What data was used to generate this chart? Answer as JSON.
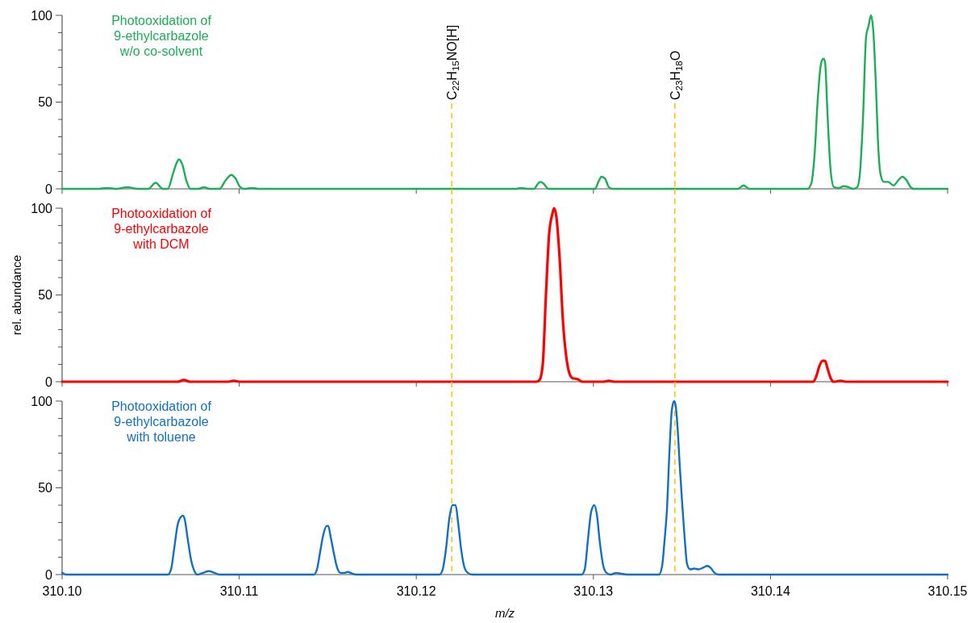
{
  "chart_data": [
    {
      "type": "line",
      "xlim": [
        310.1,
        310.15
      ],
      "ylim": [
        0,
        100
      ],
      "xticks": [
        {
          "value": 310.1,
          "label": null
        },
        {
          "value": 310.11,
          "label": null
        },
        {
          "value": 310.12,
          "label": null
        },
        {
          "value": 310.13,
          "label": null
        },
        {
          "value": 310.14,
          "label": null
        },
        {
          "value": 310.15,
          "label": null
        }
      ],
      "yticks": [
        0,
        {
          "value": 10,
          "label": null
        },
        {
          "value": 20,
          "label": null
        },
        {
          "value": 30,
          "label": null
        },
        {
          "value": 40,
          "label": null
        },
        50,
        {
          "value": 60,
          "label": null
        },
        {
          "value": 70,
          "label": null
        },
        {
          "value": 80,
          "label": null
        },
        {
          "value": 90,
          "label": null
        },
        100
      ],
      "tick_labels": "y",
      "ref_lines": [
        {
          "axis": "x",
          "value": 310.122,
          "label": "C$_{22}$H$_{15}$NO[H]",
          "color": "#ffc000",
          "line_style": "dashed"
        },
        {
          "axis": "x",
          "value": 310.1346,
          "label": "C$_{23}$H$_{18}$O",
          "color": "#ffc000",
          "line_style": "dashed"
        }
      ],
      "series": [
        {
          "name": "Photooxidation of\n9-ethylcarbazole\nw/o co-solvent",
          "color": "#1aaf54",
          "x": [
            310.1,
            310.10196,
            310.10255,
            310.1031,
            310.10369,
            310.10424,
            310.10487,
            310.10528,
            310.10569,
            310.10597,
            310.10624,
            310.10647,
            310.1066,
            310.10679,
            310.10701,
            310.10724,
            310.1077,
            310.10801,
            310.10833,
            310.10888,
            310.10924,
            310.10956,
            310.10979,
            310.11006,
            310.11029,
            310.1107,
            310.11116,
            310.12564,
            310.12591,
            310.12632,
            310.12664,
            310.12687,
            310.127,
            310.12719,
            310.12746,
            310.1301,
            310.13028,
            310.13046,
            310.13065,
            310.13087,
            310.1311,
            310.13816,
            310.13848,
            310.1388,
            310.14208,
            310.1423,
            310.14249,
            310.14267,
            310.14285,
            310.14299,
            310.14308,
            310.14321,
            310.1434,
            310.14358,
            310.14385,
            310.14413,
            310.1444,
            310.14467,
            310.1449,
            310.14504,
            310.14522,
            310.1454,
            310.14554,
            310.14567,
            310.14581,
            310.14595,
            310.14608,
            310.14622,
            310.1464,
            310.14663,
            310.14695,
            310.14722,
            310.14745,
            310.14768,
            310.14791,
            310.14809,
            310.15
          ],
          "values": [
            0,
            0,
            0.5,
            0,
            1,
            0,
            0,
            3.5,
            0,
            0,
            8,
            15,
            17,
            14,
            5,
            0,
            0,
            1,
            0,
            0,
            5,
            8,
            6,
            1,
            0,
            0.5,
            0,
            0,
            0.5,
            0,
            0,
            3,
            4,
            3,
            0,
            0,
            4,
            7,
            6,
            1,
            0,
            0,
            2,
            0,
            0,
            3,
            20,
            52,
            72,
            75,
            73,
            45,
            10,
            1,
            0.5,
            1.5,
            1,
            0,
            1,
            8,
            40,
            88,
            94,
            100,
            90,
            60,
            25,
            8,
            4,
            4,
            2,
            5,
            7,
            5,
            1,
            0,
            0
          ]
        }
      ]
    },
    {
      "type": "line",
      "xlim": [
        310.1,
        310.15
      ],
      "ylim": [
        0,
        100
      ],
      "ylabel": "rel. abundance",
      "xticks": [
        {
          "value": 310.1,
          "label": null
        },
        {
          "value": 310.11,
          "label": null
        },
        {
          "value": 310.12,
          "label": null
        },
        {
          "value": 310.13,
          "label": null
        },
        {
          "value": 310.14,
          "label": null
        },
        {
          "value": 310.15,
          "label": null
        }
      ],
      "yticks": [
        0,
        {
          "value": 10,
          "label": null
        },
        {
          "value": 20,
          "label": null
        },
        {
          "value": 30,
          "label": null
        },
        {
          "value": 40,
          "label": null
        },
        50,
        {
          "value": 60,
          "label": null
        },
        {
          "value": 70,
          "label": null
        },
        {
          "value": 80,
          "label": null
        },
        {
          "value": 90,
          "label": null
        },
        100
      ],
      "tick_labels": "y",
      "ref_lines": [
        {
          "axis": "x",
          "value": 310.122,
          "color": "#ffc000",
          "line_style": "dashed"
        },
        {
          "axis": "x",
          "value": 310.1346,
          "color": "#ffc000",
          "line_style": "dashed"
        }
      ],
      "series": [
        {
          "name": "Photooxidation of\n9-ethylcarbazole\nwith DCM",
          "color": "#ff0000",
          "x": [
            310.1,
            310.10651,
            310.10688,
            310.10724,
            310.10934,
            310.1097,
            310.11006,
            310.12678,
            310.12696,
            310.12714,
            310.12732,
            310.1275,
            310.12769,
            310.12778,
            310.12791,
            310.1281,
            310.12828,
            310.12846,
            310.12864,
            310.12883,
            310.1291,
            310.12937,
            310.13056,
            310.13087,
            310.13119,
            310.1424,
            310.14258,
            310.14276,
            310.14294,
            310.14308,
            310.14321,
            310.1434,
            310.14358,
            310.14394,
            310.14431,
            310.15
          ],
          "values": [
            0,
            0,
            1,
            0,
            0,
            0.5,
            0,
            0,
            1,
            10,
            50,
            85,
            97,
            100,
            95,
            70,
            35,
            15,
            5,
            2,
            1.5,
            0,
            0,
            0.5,
            0,
            0,
            3,
            9,
            12,
            12,
            8,
            2,
            0,
            0.5,
            0,
            0
          ]
        }
      ]
    },
    {
      "type": "line",
      "xlim": [
        310.1,
        310.15
      ],
      "ylim": [
        0,
        100
      ],
      "xlabel": "m/z",
      "xticks": [
        {
          "value": 310.1,
          "label": "310.10"
        },
        {
          "value": 310.11,
          "label": "310.11"
        },
        {
          "value": 310.12,
          "label": "310.12"
        },
        {
          "value": 310.13,
          "label": "310.13"
        },
        {
          "value": 310.14,
          "label": "310.14"
        },
        {
          "value": 310.15,
          "label": "310.15"
        }
      ],
      "yticks": [
        0,
        {
          "value": 10,
          "label": null
        },
        {
          "value": 20,
          "label": null
        },
        {
          "value": 30,
          "label": null
        },
        {
          "value": 40,
          "label": null
        },
        50,
        {
          "value": 60,
          "label": null
        },
        {
          "value": 70,
          "label": null
        },
        {
          "value": 80,
          "label": null
        },
        {
          "value": 90,
          "label": null
        },
        100
      ],
      "ref_lines": [
        {
          "axis": "x",
          "value": 310.122,
          "color": "#ffc000",
          "line_style": "dashed"
        },
        {
          "axis": "x",
          "value": 310.1346,
          "color": "#ffc000",
          "line_style": "dashed"
        }
      ],
      "series": [
        {
          "name": "Photooxidation of\n9-ethylcarbazole\nwith toluene",
          "color": "#1170c4",
          "x": [
            310.1,
            310.10023,
            310.10597,
            310.10615,
            310.10633,
            310.10651,
            310.10669,
            310.10683,
            310.10692,
            310.1071,
            310.10729,
            310.10747,
            310.10765,
            310.10797,
            310.10829,
            310.10861,
            310.10888,
            310.11421,
            310.11439,
            310.11457,
            310.11475,
            310.11494,
            310.11503,
            310.11516,
            310.11535,
            310.11553,
            310.11571,
            310.11594,
            310.11612,
            310.11639,
            310.11662,
            310.12131,
            310.12149,
            310.12168,
            310.12186,
            310.12204,
            310.12222,
            310.12236,
            310.12254,
            310.12272,
            310.12291,
            310.12318,
            310.12933,
            310.12951,
            310.12969,
            310.12987,
            310.13005,
            310.13019,
            310.13037,
            310.13056,
            310.13074,
            310.13097,
            310.13128,
            310.13156,
            310.13192,
            310.13352,
            310.1337,
            310.13388,
            310.13402,
            310.13415,
            310.13429,
            310.13443,
            310.13456,
            310.13465,
            310.13475,
            310.13488,
            310.13502,
            310.13516,
            310.13529,
            310.13547,
            310.1357,
            310.13593,
            310.1362,
            310.13643,
            310.13661,
            310.13684,
            310.13707,
            310.15
          ],
          "values": [
            1,
            0,
            0,
            3,
            15,
            28,
            33,
            34,
            32,
            20,
            8,
            2,
            0,
            1,
            2,
            1,
            0,
            0,
            3,
            13,
            23,
            28,
            28,
            22,
            12,
            4,
            1,
            1,
            1.5,
            0.5,
            0,
            0,
            3,
            15,
            32,
            40,
            40,
            30,
            14,
            4,
            1,
            0,
            0,
            3,
            20,
            36,
            40,
            35,
            18,
            5,
            1,
            0,
            1,
            0.5,
            0,
            0,
            0,
            5,
            20,
            37,
            70,
            95,
            100,
            97,
            85,
            62,
            40,
            20,
            6,
            3,
            3.5,
            3,
            4,
            5,
            4,
            1,
            0,
            0
          ]
        }
      ]
    }
  ]
}
